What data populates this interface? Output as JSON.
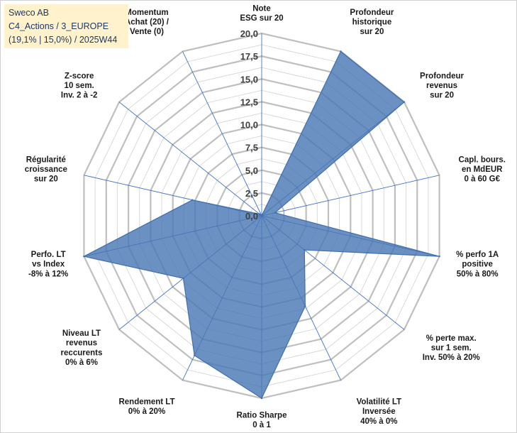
{
  "title_box": {
    "line1": "Sweco AB",
    "line2": "C4_Actions / 3_EUROPE",
    "line3": "(19,1% | 15,0%) / 2025W44"
  },
  "colors": {
    "fill": "#4a78b5",
    "stroke": "#3f6fae",
    "grid_ring": "#bfbfbf",
    "grid_minor": "#d9d9d9",
    "spoke": "#4472c4",
    "title_bg": "#fff2cc"
  },
  "chart_data": {
    "type": "radar",
    "title": "",
    "rmin": 0,
    "rmax": 20,
    "ticks": [
      "0,0",
      "2,5",
      "5,0",
      "7,5",
      "10,0",
      "12,5",
      "15,0",
      "17,5",
      "20,0"
    ],
    "categories": [
      [
        "Note",
        "ESG sur 20"
      ],
      [
        "Profondeur",
        "historique",
        "sur 20"
      ],
      [
        "Profondeur",
        "revenus",
        "sur 20"
      ],
      [
        "Capl. bours.",
        "en MdEUR",
        "0 à 60 G€"
      ],
      [
        "% perfo 1A",
        "positive",
        "50% à 80%"
      ],
      [
        "% perte max.",
        "sur 1 sem.",
        "Inv. 50% à 20%"
      ],
      [
        "Volatilité LT",
        "Inversée",
        "40% à 0%"
      ],
      [
        "Ratio Sharpe",
        "0 à 1"
      ],
      [
        "Rendement LT",
        "0% à 20%"
      ],
      [
        "Niveau LT",
        "revenus",
        "reccurents",
        "0% à 6%"
      ],
      [
        "Perfo. LT",
        "vs Index",
        "-8% à 12%"
      ],
      [
        "Régularité",
        "croissance",
        "sur 20"
      ],
      [
        "Z-score",
        "10 sem.",
        "Inv. 2 à -2"
      ],
      [
        "Momentum",
        "Achat (20) /",
        "Vente (0)"
      ]
    ],
    "series": [
      {
        "name": "Sweco AB",
        "values": [
          0,
          20,
          20,
          1.5,
          20,
          6,
          11,
          20,
          17,
          11,
          20,
          7.8,
          0.3,
          0
        ]
      }
    ]
  }
}
